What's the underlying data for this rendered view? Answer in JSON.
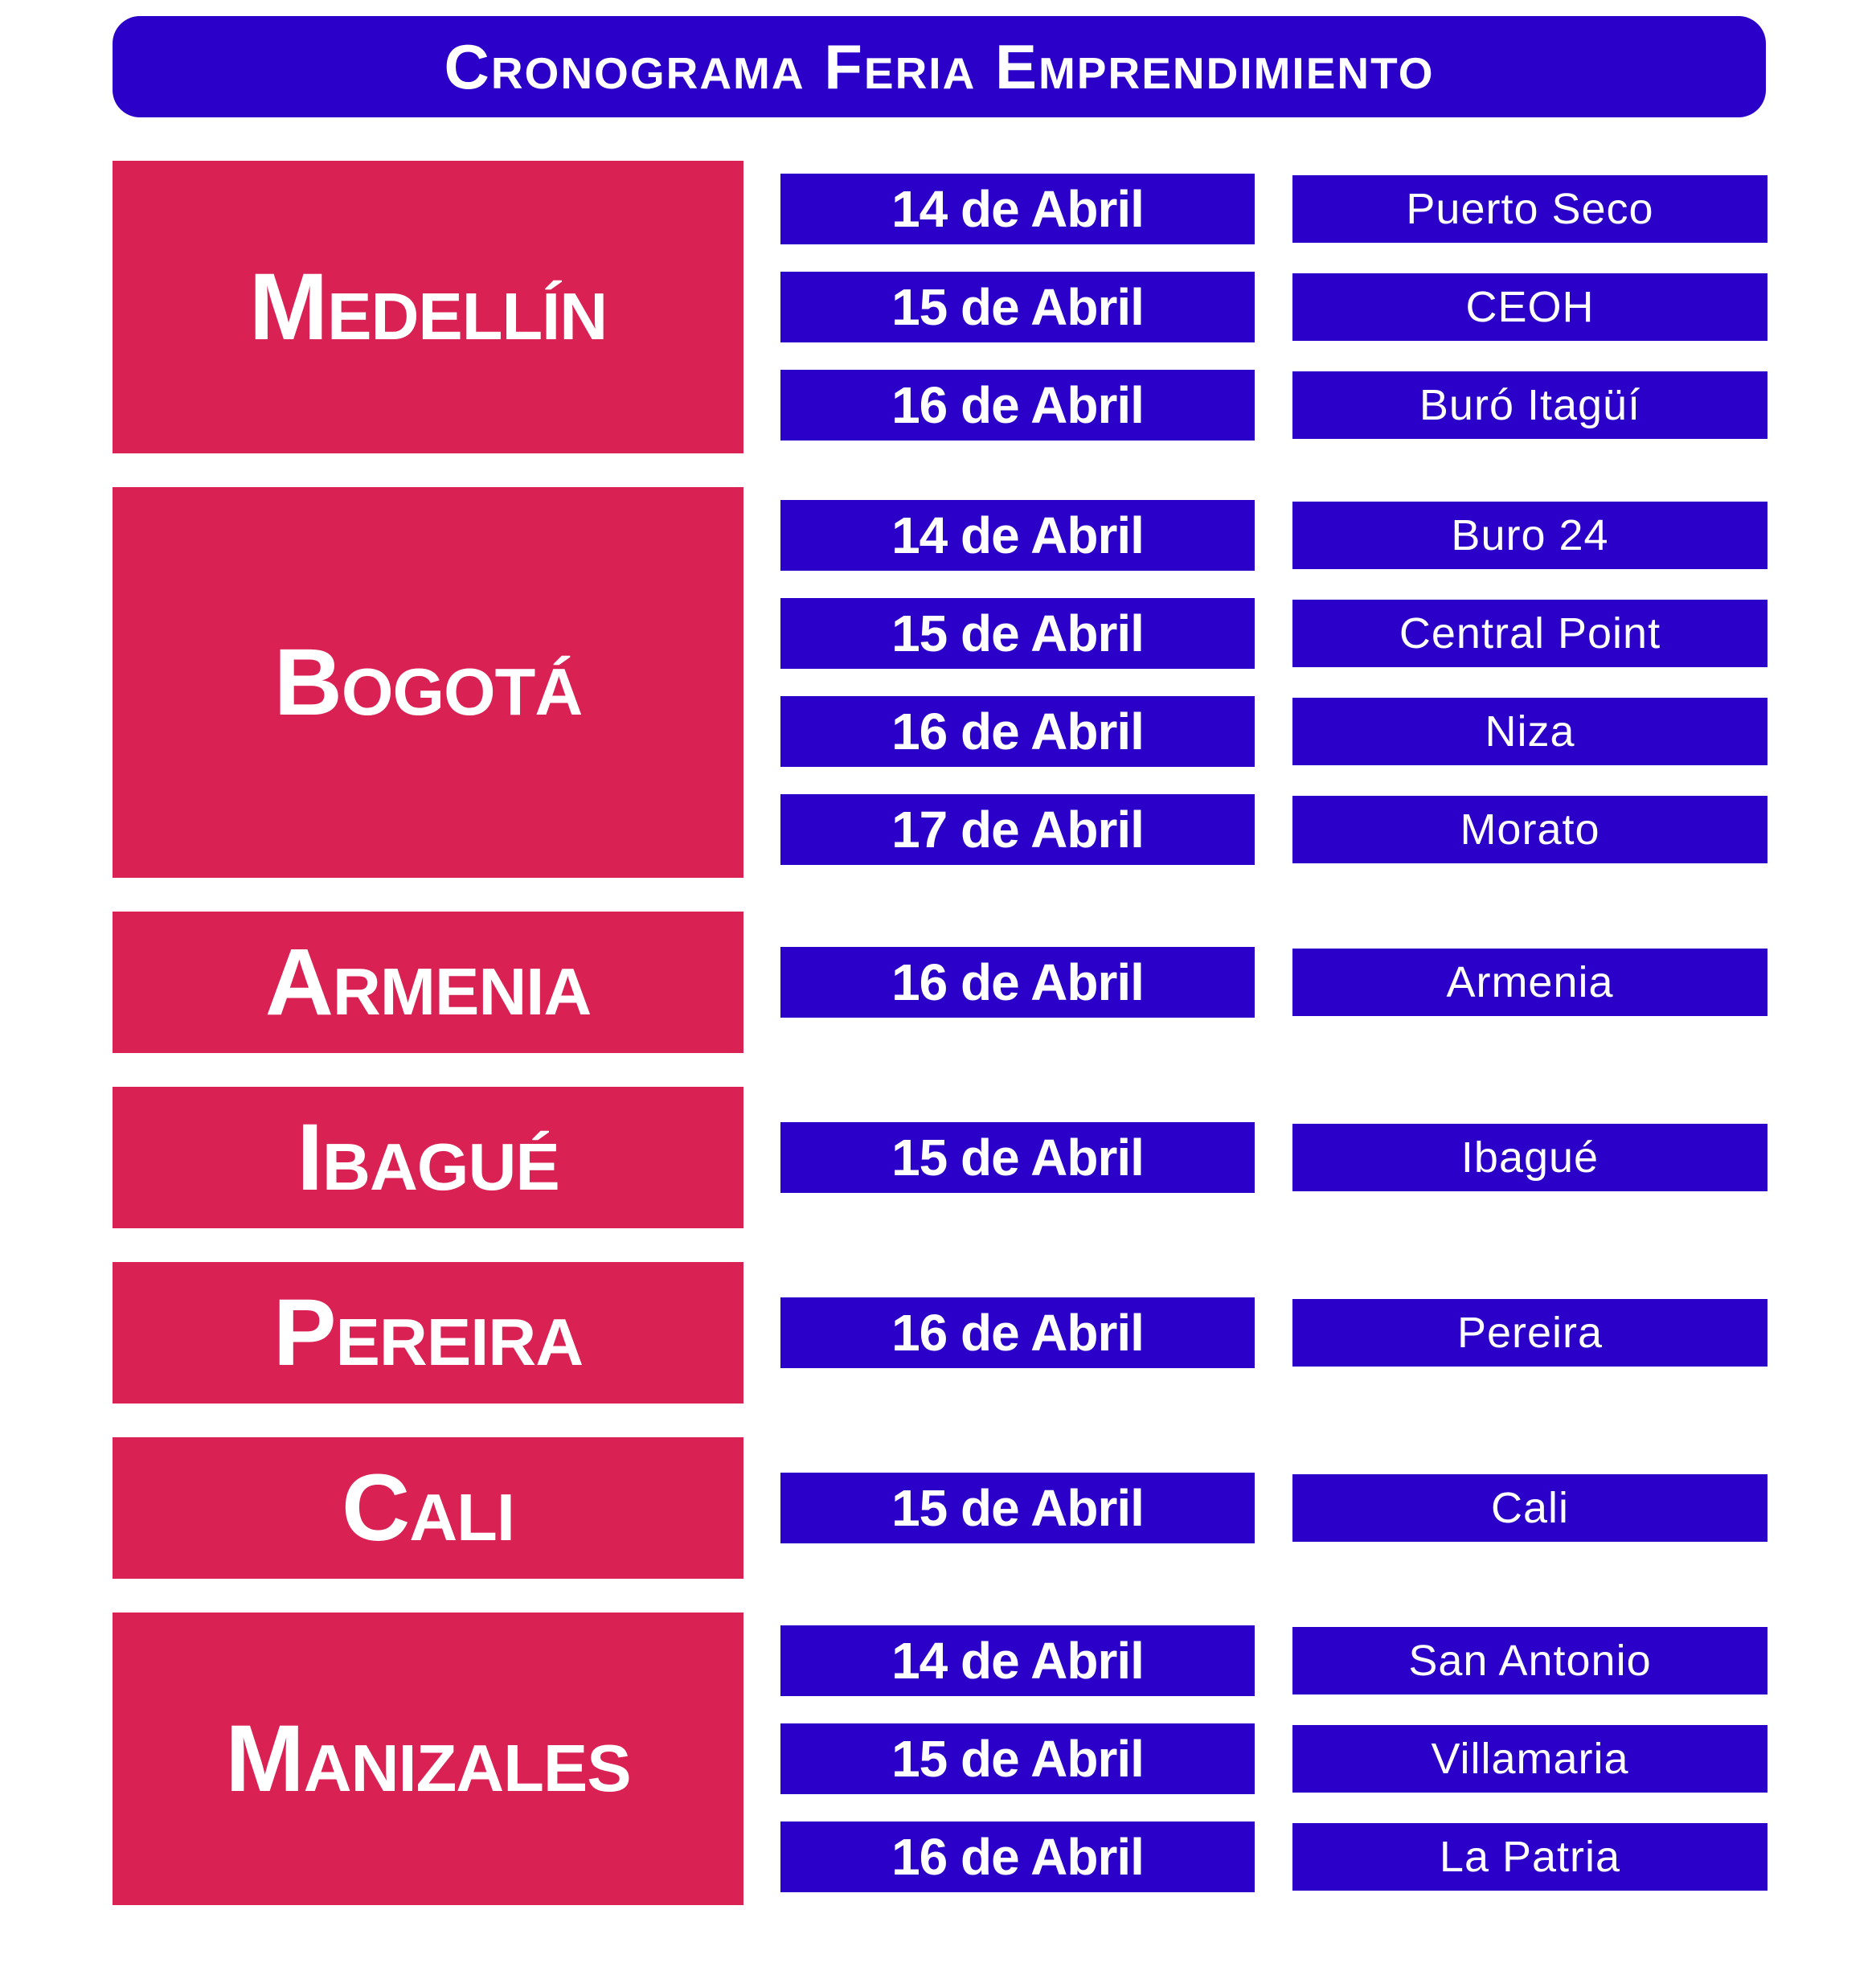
{
  "title": "Cronograma Feria Emprendimiento",
  "colors": {
    "red": "#d92153",
    "blue": "#2b00c8",
    "white": "#ffffff"
  },
  "groups": [
    {
      "city": "Medellín",
      "entries": [
        {
          "date": "14 de Abril",
          "location": "Puerto Seco"
        },
        {
          "date": "15 de Abril",
          "location": "CEOH"
        },
        {
          "date": "16 de Abril",
          "location": "Buró Itagüí"
        }
      ]
    },
    {
      "city": "Bogotá",
      "entries": [
        {
          "date": "14 de Abril",
          "location": "Buro 24"
        },
        {
          "date": "15 de Abril",
          "location": "Central Point"
        },
        {
          "date": "16 de Abril",
          "location": "Niza"
        },
        {
          "date": "17 de Abril",
          "location": "Morato"
        }
      ]
    },
    {
      "city": "Armenia",
      "entries": [
        {
          "date": "16 de Abril",
          "location": "Armenia"
        }
      ]
    },
    {
      "city": "Ibagué",
      "entries": [
        {
          "date": "15 de Abril",
          "location": "Ibagué"
        }
      ]
    },
    {
      "city": "Pereira",
      "entries": [
        {
          "date": "16 de Abril",
          "location": "Pereira"
        }
      ]
    },
    {
      "city": "Cali",
      "entries": [
        {
          "date": "15 de Abril",
          "location": "Cali"
        }
      ]
    },
    {
      "city": "Manizales",
      "entries": [
        {
          "date": "14 de Abril",
          "location": "San Antonio"
        },
        {
          "date": "15 de Abril",
          "location": "Villamaria"
        },
        {
          "date": "16 de Abril",
          "location": "La Patria"
        }
      ]
    }
  ]
}
